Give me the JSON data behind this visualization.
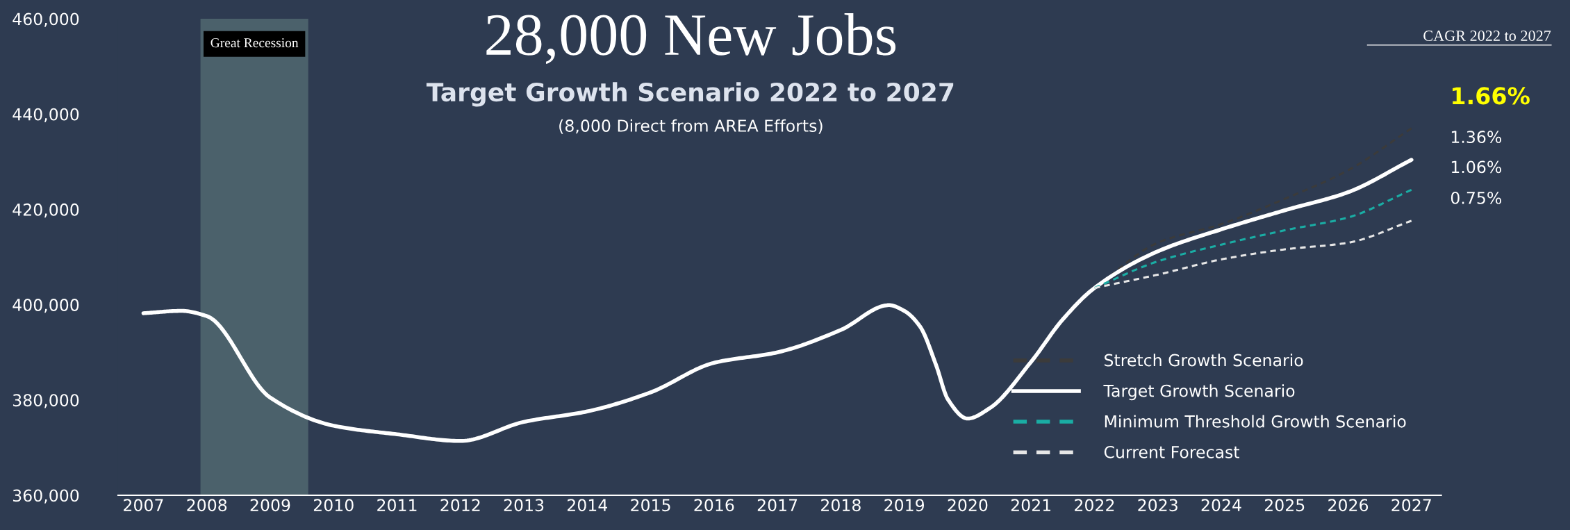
{
  "chart_data": {
    "type": "line",
    "title": "28,000 New Jobs",
    "subtitle": "Target Growth Scenario 2022 to 2027",
    "annotations": [
      "(8,000 Direct from AREA Efforts)",
      "CAGR 2022 to 2027",
      "1.66%",
      "1.36%",
      "1.06%",
      "0.75%"
    ],
    "series": [
      {
        "name": "Stretch Growth Scenario",
        "color": "#3b3b3b",
        "line_style": "dashed",
        "x": [
          2022,
          2023,
          2024,
          2025,
          2026,
          2027
        ],
        "values": [
          403500,
          413000,
          416900,
          422200,
          428200,
          437000
        ]
      },
      {
        "name": "Target Growth Scenario",
        "color": "#ffffff",
        "line_style": "solid",
        "x": [
          2007,
          2007.6,
          2008,
          2009,
          2010,
          2011,
          2012,
          2013,
          2014,
          2015,
          2016,
          2017,
          2018,
          2018.76,
          2019,
          2019.25,
          2019.5,
          2019.69,
          2020,
          2020.35,
          2021,
          2021.5,
          2022,
          2023,
          2024,
          2025,
          2026,
          2027
        ],
        "values": [
          398200,
          398700,
          397600,
          380500,
          374600,
          372800,
          371400,
          375400,
          377600,
          381600,
          387800,
          390000,
          394700,
          399900,
          398700,
          395400,
          387400,
          380100,
          376100,
          378300,
          388000,
          396900,
          403500,
          411200,
          415800,
          419800,
          423600,
          430400
        ]
      },
      {
        "name": "Minimum Threshold Growth Scenario",
        "color": "#1aada4",
        "line_style": "dashed",
        "x": [
          2022,
          2023,
          2024,
          2025,
          2026,
          2027
        ],
        "values": [
          403500,
          409100,
          412600,
          415600,
          418300,
          424100
        ]
      },
      {
        "name": "Current Forecast",
        "color": "#e6e6e6",
        "line_style": "dashed",
        "x": [
          2022,
          2023,
          2024,
          2025,
          2026,
          2027
        ],
        "values": [
          403500,
          406300,
          409500,
          411600,
          413000,
          417600
        ]
      }
    ],
    "bands": [
      {
        "axis": "x",
        "from": 2007.9,
        "to": 2009.6,
        "label": "Great Recession",
        "color": "#4b616b"
      }
    ],
    "xlim": [
      2006.6,
      2027.47
    ],
    "xticks": [
      2007,
      2008,
      2009,
      2010,
      2011,
      2012,
      2013,
      2014,
      2015,
      2016,
      2017,
      2018,
      2019,
      2020,
      2021,
      2022,
      2023,
      2024,
      2025,
      2026,
      2027
    ],
    "ylim": [
      360000,
      460000
    ],
    "yticks": [
      {
        "value": 360000,
        "label": "360,000"
      },
      {
        "value": 380000,
        "label": "380,000"
      },
      {
        "value": 400000,
        "label": "400,000"
      },
      {
        "value": 420000,
        "label": "420,000"
      },
      {
        "value": 440000,
        "label": "440,000"
      },
      {
        "value": 460000,
        "label": "460,000"
      }
    ],
    "grid": false,
    "legend": "bottom right",
    "marker": "none"
  }
}
